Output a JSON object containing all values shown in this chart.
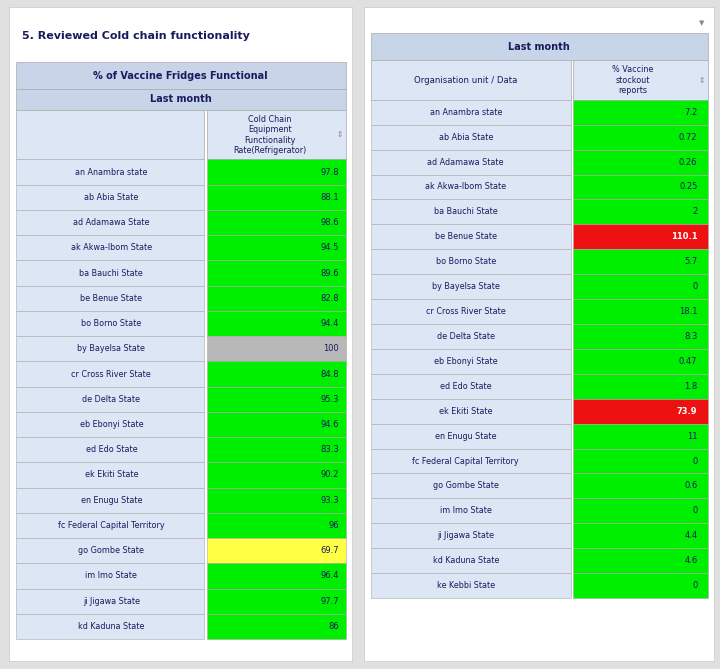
{
  "left_title": "5. Reviewed Cold chain functionality",
  "left_header1": "% of Vaccine Fridges Functional",
  "left_header2": "Last month",
  "left_col_header": "Cold Chain\nEquipment\nFunctionality\nRate(Refrigerator)",
  "left_states": [
    "an Anambra state",
    "ab Abia State",
    "ad Adamawa State",
    "ak Akwa-Ibom State",
    "ba Bauchi State",
    "be Benue State",
    "bo Borno State",
    "by Bayelsa State",
    "cr Cross River State",
    "de Delta State",
    "eb Ebonyi State",
    "ed Edo State",
    "ek Ekiti State",
    "en Enugu State",
    "fc Federal Capital Territory",
    "go Gombe State",
    "im Imo State",
    "ji Jigawa State",
    "kd Kaduna State"
  ],
  "left_values": [
    97.8,
    88.1,
    98.6,
    94.5,
    89.6,
    82.8,
    94.4,
    100,
    84.8,
    95.3,
    94.6,
    83.3,
    90.2,
    93.3,
    96,
    69.7,
    96.4,
    97.7,
    86
  ],
  "left_colors": [
    "#00ee00",
    "#00ee00",
    "#00ee00",
    "#00ee00",
    "#00ee00",
    "#00ee00",
    "#00ee00",
    "#b8b8b8",
    "#00ee00",
    "#00ee00",
    "#00ee00",
    "#00ee00",
    "#00ee00",
    "#00ee00",
    "#00ee00",
    "#ffff44",
    "#00ee00",
    "#00ee00",
    "#00ee00"
  ],
  "right_header": "Last month",
  "right_col1": "Organisation unit / Data",
  "right_col2": "% Vaccine\nstockout\nreports",
  "right_states": [
    "an Anambra state",
    "ab Abia State",
    "ad Adamawa State",
    "ak Akwa-Ibom State",
    "ba Bauchi State",
    "be Benue State",
    "bo Borno State",
    "by Bayelsa State",
    "cr Cross River State",
    "de Delta State",
    "eb Ebonyi State",
    "ed Edo State",
    "ek Ekiti State",
    "en Enugu State",
    "fc Federal Capital Territory",
    "go Gombe State",
    "im Imo State",
    "ji Jigawa State",
    "kd Kaduna State",
    "ke Kebbi State"
  ],
  "right_values": [
    "7.2",
    "0.72",
    "0.26",
    "0.25",
    "2",
    "110.1",
    "5.7",
    "0",
    "18.1",
    "8.3",
    "0.47",
    "1.8",
    "73.9",
    "11",
    "0",
    "0.6",
    "0",
    "4.4",
    "4.6",
    "0"
  ],
  "right_colors": [
    "#00ee00",
    "#00ee00",
    "#00ee00",
    "#00ee00",
    "#00ee00",
    "#ee1111",
    "#00ee00",
    "#00ee00",
    "#00ee00",
    "#00ee00",
    "#00ee00",
    "#00ee00",
    "#ee1111",
    "#00ee00",
    "#00ee00",
    "#00ee00",
    "#00ee00",
    "#00ee00",
    "#00ee00",
    "#00ee00"
  ],
  "outer_bg": "#e0e0e0",
  "panel_bg": "#ffffff",
  "header_bg": "#c8d4e8",
  "row_bg": "#dce6f5",
  "border_color": "#aaaaaa",
  "text_color": "#1a1a5e",
  "white_text": "#ffffff"
}
